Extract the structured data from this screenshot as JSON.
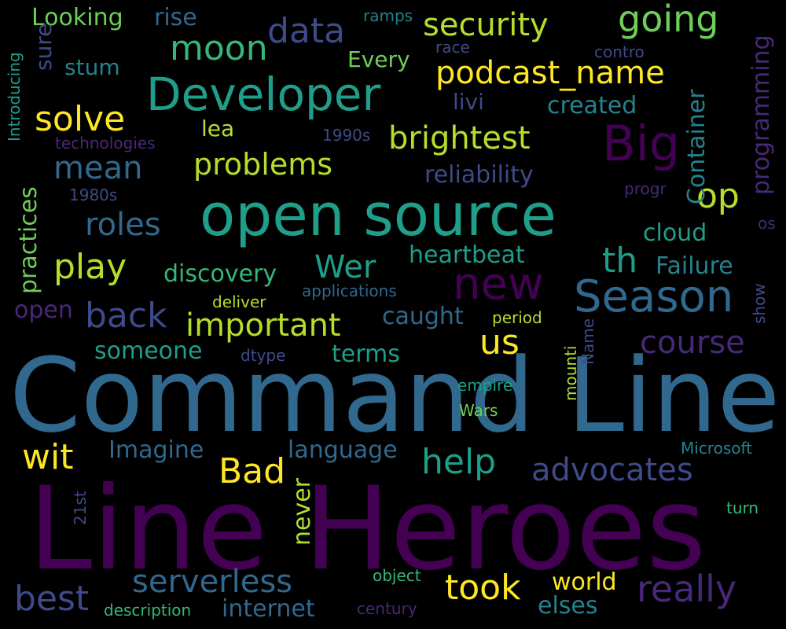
{
  "palette": {
    "background": "#000000",
    "purple": "#440154",
    "indigo": "#3e4a89",
    "blue": "#31688e",
    "teal": "#26828e",
    "green_teal": "#1f9e89",
    "green": "#35b779",
    "light_green": "#6ece58",
    "lime": "#b5de2b",
    "yellow": "#fde725"
  },
  "words": [
    {
      "key": "command-line",
      "text": "Command Line",
      "color": "#31688e"
    },
    {
      "key": "line-heroes",
      "text": "Line Heroes",
      "color": "#440154"
    },
    {
      "key": "open-source",
      "text": "open source",
      "color": "#1f9e89"
    },
    {
      "key": "developer",
      "text": "Developer",
      "color": "#1f9e89"
    },
    {
      "key": "big",
      "text": "Big",
      "color": "#440154"
    },
    {
      "key": "season",
      "text": "Season",
      "color": "#31688e"
    },
    {
      "key": "new",
      "text": "new",
      "color": "#440154"
    },
    {
      "key": "podcast-name",
      "text": "podcast_name",
      "color": "#fde725"
    },
    {
      "key": "security",
      "text": "security",
      "color": "#b5de2b"
    },
    {
      "key": "going",
      "text": "going",
      "color": "#6ece58"
    },
    {
      "key": "brightest",
      "text": "brightest",
      "color": "#b5de2b"
    },
    {
      "key": "important",
      "text": "important",
      "color": "#b5de2b"
    },
    {
      "key": "problems",
      "text": "problems",
      "color": "#b5de2b"
    },
    {
      "key": "course",
      "text": "course",
      "color": "#482878"
    },
    {
      "key": "advocates",
      "text": "advocates",
      "color": "#3e4a89"
    },
    {
      "key": "serverless",
      "text": "serverless",
      "color": "#31688e"
    },
    {
      "key": "really",
      "text": "really",
      "color": "#482878"
    },
    {
      "key": "took",
      "text": "took",
      "color": "#fde725"
    },
    {
      "key": "best",
      "text": "best",
      "color": "#3e4a89"
    },
    {
      "key": "moon",
      "text": "moon",
      "color": "#35b779"
    },
    {
      "key": "data",
      "text": "data",
      "color": "#3e4a89"
    },
    {
      "key": "solve",
      "text": "solve",
      "color": "#fde725"
    },
    {
      "key": "mean",
      "text": "mean",
      "color": "#31688e"
    },
    {
      "key": "roles",
      "text": "roles",
      "color": "#31688e"
    },
    {
      "key": "play",
      "text": "play",
      "color": "#b5de2b"
    },
    {
      "key": "back",
      "text": "back",
      "color": "#3e4a89"
    },
    {
      "key": "wer",
      "text": "Wer",
      "color": "#1f9e89"
    },
    {
      "key": "th",
      "text": "th",
      "color": "#1f9e89"
    },
    {
      "key": "op",
      "text": "op",
      "color": "#b5de2b"
    },
    {
      "key": "us",
      "text": "us",
      "color": "#fde725"
    },
    {
      "key": "help",
      "text": "help",
      "color": "#1f9e89"
    },
    {
      "key": "bad",
      "text": "Bad",
      "color": "#fde725"
    },
    {
      "key": "wit",
      "text": "wit",
      "color": "#fde725"
    },
    {
      "key": "reliability",
      "text": "reliability",
      "color": "#3e4a89"
    },
    {
      "key": "heartbeat",
      "text": "heartbeat",
      "color": "#1f9e89"
    },
    {
      "key": "discovery",
      "text": "discovery",
      "color": "#35b779"
    },
    {
      "key": "failure",
      "text": "Failure",
      "color": "#26828e"
    },
    {
      "key": "cloud",
      "text": "cloud",
      "color": "#1f9e89"
    },
    {
      "key": "created",
      "text": "created",
      "color": "#26828e"
    },
    {
      "key": "caught",
      "text": "caught",
      "color": "#31688e"
    },
    {
      "key": "terms",
      "text": "terms",
      "color": "#1f9e89"
    },
    {
      "key": "someone",
      "text": "someone",
      "color": "#1f9e89"
    },
    {
      "key": "language",
      "text": "language",
      "color": "#31688e"
    },
    {
      "key": "imagine",
      "text": "Imagine",
      "color": "#31688e"
    },
    {
      "key": "internet",
      "text": "internet",
      "color": "#31688e"
    },
    {
      "key": "elses",
      "text": "elses",
      "color": "#26828e"
    },
    {
      "key": "world",
      "text": "world",
      "color": "#fde725"
    },
    {
      "key": "looking",
      "text": "Looking",
      "color": "#6ece58"
    },
    {
      "key": "rise",
      "text": "rise",
      "color": "#31688e"
    },
    {
      "key": "every",
      "text": "Every",
      "color": "#6ece58"
    },
    {
      "key": "stum",
      "text": "stum",
      "color": "#26828e"
    },
    {
      "key": "lea",
      "text": "lea",
      "color": "#b5de2b"
    },
    {
      "key": "livi",
      "text": "livi",
      "color": "#3e4a89"
    },
    {
      "key": "ramps",
      "text": "ramps",
      "color": "#26828e"
    },
    {
      "key": "race",
      "text": "race",
      "color": "#3e4a89"
    },
    {
      "key": "contro",
      "text": "contro",
      "color": "#3e4a89"
    },
    {
      "key": "technologies",
      "text": "technologies",
      "color": "#482878"
    },
    {
      "key": "1990s",
      "text": "1990s",
      "color": "#3e4a89"
    },
    {
      "key": "1980s",
      "text": "1980s",
      "color": "#3e4a89"
    },
    {
      "key": "progr",
      "text": "progr",
      "color": "#482878"
    },
    {
      "key": "os",
      "text": "os",
      "color": "#482878"
    },
    {
      "key": "open-small",
      "text": "open",
      "color": "#482878"
    },
    {
      "key": "deliver",
      "text": "deliver",
      "color": "#b5de2b"
    },
    {
      "key": "applications",
      "text": "applications",
      "color": "#31688e"
    },
    {
      "key": "period",
      "text": "period",
      "color": "#b5de2b"
    },
    {
      "key": "dtype",
      "text": "dtype",
      "color": "#3e4a89"
    },
    {
      "key": "empire",
      "text": "empire",
      "color": "#1f9e89"
    },
    {
      "key": "wars",
      "text": "Wars",
      "color": "#6ece58"
    },
    {
      "key": "microsoft",
      "text": "Microsoft",
      "color": "#26828e"
    },
    {
      "key": "turn",
      "text": "turn",
      "color": "#35b779"
    },
    {
      "key": "object",
      "text": "object",
      "color": "#35b779"
    },
    {
      "key": "description",
      "text": "description",
      "color": "#35b779"
    },
    {
      "key": "century",
      "text": "century",
      "color": "#482878"
    },
    {
      "key": "introducing",
      "text": "Introducing",
      "color": "#1f9e89"
    },
    {
      "key": "sure",
      "text": "sure",
      "color": "#3e4a89"
    },
    {
      "key": "practices",
      "text": "practices",
      "color": "#6ece58"
    },
    {
      "key": "container",
      "text": "Container",
      "color": "#26828e"
    },
    {
      "key": "programming",
      "text": "programming",
      "color": "#482878"
    },
    {
      "key": "show",
      "text": "show",
      "color": "#3e4a89"
    },
    {
      "key": "name",
      "text": "Name",
      "color": "#3e4a89"
    },
    {
      "key": "mounti",
      "text": "mounti",
      "color": "#b5de2b"
    },
    {
      "key": "never",
      "text": "never",
      "color": "#b5de2b"
    },
    {
      "key": "21st",
      "text": "21st",
      "color": "#3e4a89"
    }
  ]
}
